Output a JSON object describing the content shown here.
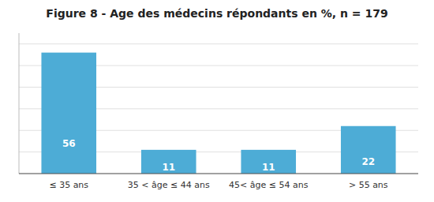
{
  "chart_data": {
    "type": "bar",
    "title": "Figure 8 - Age des médecins répondants en %, n = 179",
    "categories": [
      "≤ 35 ans",
      "35 < âge ≤ 44 ans",
      "45< âge ≤ 54 ans",
      "> 55 ans"
    ],
    "values": [
      56,
      11,
      11,
      22
    ],
    "color": "#4DACD6",
    "ylim": [
      0,
      65
    ],
    "yticks": [
      0,
      10,
      20,
      30,
      40,
      50,
      60
    ],
    "grid": true,
    "data_labels": true,
    "tick_labels": "x"
  }
}
